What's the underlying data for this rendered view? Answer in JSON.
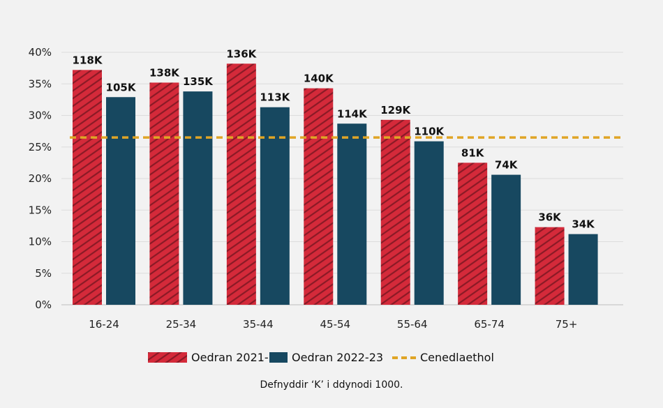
{
  "chart_data": {
    "type": "bar",
    "categories": [
      "16-24",
      "25-34",
      "35-44",
      "45-54",
      "55-64",
      "65-74",
      "75+"
    ],
    "series": [
      {
        "name": "Oedran 2021-22",
        "values": [
          37.2,
          35.2,
          38.2,
          34.3,
          29.3,
          22.5,
          12.3
        ],
        "labels": [
          "118K",
          "138K",
          "136K",
          "140K",
          "129K",
          "81K",
          "36K"
        ],
        "color": "#d42a3a",
        "pattern": "diagonal-hatch"
      },
      {
        "name": "Oedran 2022-23",
        "values": [
          32.9,
          33.8,
          31.3,
          28.7,
          25.9,
          20.6,
          11.2
        ],
        "labels": [
          "105K",
          "135K",
          "113K",
          "114K",
          "110K",
          "74K",
          "34K"
        ],
        "color": "#174860"
      }
    ],
    "reference_line": {
      "name": "Cenedlaethol",
      "value": 26.5,
      "color": "#e0a526",
      "style": "dashed"
    },
    "y_ticks": [
      "0%",
      "5%",
      "10%",
      "15%",
      "20%",
      "25%",
      "30%",
      "35%",
      "40%"
    ],
    "ylim": [
      0,
      40
    ],
    "grid": true,
    "legend_position": "bottom",
    "footnote": "Defnyddir ‘K’ i ddynodi 1000."
  }
}
